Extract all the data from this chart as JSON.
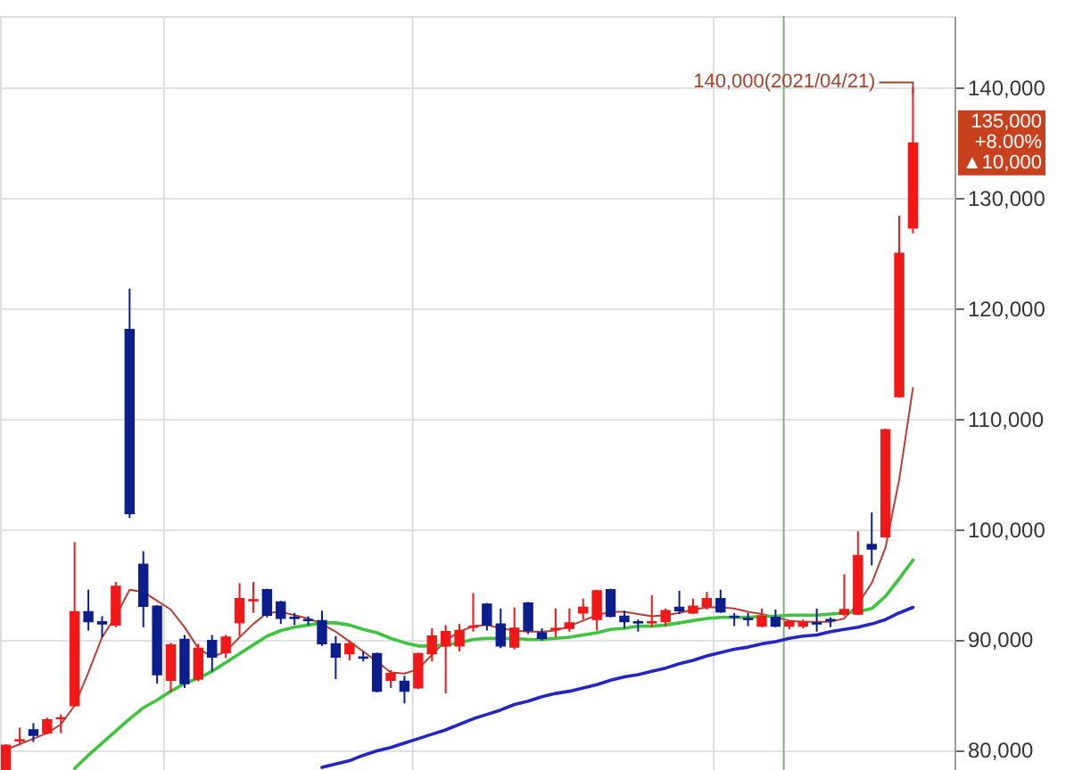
{
  "chart_data": {
    "type": "candlestick",
    "categories": [
      null,
      null,
      null,
      null,
      null,
      null,
      null,
      null,
      null,
      null,
      null,
      null,
      null,
      null,
      null,
      null,
      null,
      null,
      null,
      null,
      null,
      null,
      null,
      null,
      null,
      null,
      null,
      null,
      null,
      null,
      null,
      null,
      null,
      null,
      null,
      null,
      null,
      null,
      null,
      null,
      null,
      null,
      null,
      null,
      null,
      null,
      null,
      null,
      null,
      null,
      null,
      null,
      null,
      null,
      null,
      null,
      null,
      null,
      null,
      null,
      null,
      null,
      null,
      null,
      null,
      null,
      null
    ],
    "ohlc": [
      [
        78200,
        80500,
        78100,
        80400
      ],
      [
        80800,
        82000,
        80400,
        80900
      ],
      [
        81800,
        82400,
        80700,
        81300
      ],
      [
        81500,
        82900,
        81400,
        82700
      ],
      [
        82800,
        83200,
        81500,
        82900
      ],
      [
        84000,
        98800,
        83900,
        92500
      ],
      [
        92500,
        94500,
        90800,
        91600
      ],
      [
        91600,
        92100,
        90200,
        91400
      ],
      [
        91300,
        95200,
        91100,
        94800
      ],
      [
        118100,
        121800,
        101000,
        101400
      ],
      [
        96800,
        98000,
        91100,
        93000
      ],
      [
        93000,
        93100,
        86000,
        86800
      ],
      [
        86300,
        89700,
        85200,
        89500
      ],
      [
        90000,
        90400,
        85600,
        86000
      ],
      [
        86400,
        89600,
        86200,
        89200
      ],
      [
        89900,
        90400,
        87100,
        88400
      ],
      [
        88800,
        90400,
        88300,
        90200
      ],
      [
        91500,
        95100,
        90300,
        93700
      ],
      [
        93500,
        95200,
        92400,
        93600
      ],
      [
        94500,
        94600,
        92000,
        92200
      ],
      [
        93400,
        93500,
        91400,
        91900
      ],
      [
        92000,
        92400,
        91300,
        91900
      ],
      [
        91800,
        92100,
        91300,
        91700
      ],
      [
        91700,
        92600,
        89400,
        89600
      ],
      [
        89600,
        90300,
        86400,
        88400
      ],
      [
        88700,
        89900,
        88100,
        89600
      ],
      [
        88400,
        88900,
        88000,
        88300
      ],
      [
        88700,
        88800,
        85200,
        85300
      ],
      [
        86300,
        87200,
        85600,
        86900
      ],
      [
        86200,
        86700,
        84200,
        85300
      ],
      [
        85600,
        88800,
        85500,
        88700
      ],
      [
        88700,
        91000,
        88000,
        90300
      ],
      [
        89400,
        91300,
        85100,
        90700
      ],
      [
        89400,
        91400,
        88900,
        90800
      ],
      [
        91100,
        94200,
        90700,
        91200
      ],
      [
        93200,
        93300,
        90800,
        91300
      ],
      [
        91400,
        92800,
        89200,
        89400
      ],
      [
        89300,
        92900,
        89100,
        91000
      ],
      [
        93300,
        93400,
        90500,
        90800
      ],
      [
        90600,
        91000,
        89900,
        90100
      ],
      [
        90900,
        92800,
        90200,
        91000
      ],
      [
        91000,
        92800,
        90700,
        91500
      ],
      [
        92400,
        93700,
        91800,
        92900
      ],
      [
        91800,
        94500,
        90800,
        94400
      ],
      [
        94500,
        94600,
        92000,
        92100
      ],
      [
        92100,
        92600,
        91000,
        91600
      ],
      [
        91600,
        91800,
        90700,
        91500
      ],
      [
        91500,
        94000,
        91100,
        91600
      ],
      [
        91600,
        92800,
        91200,
        92600
      ],
      [
        92900,
        94400,
        92300,
        92600
      ],
      [
        92400,
        93700,
        92300,
        93000
      ],
      [
        93000,
        94300,
        92700,
        93700
      ],
      [
        93700,
        94500,
        92400,
        92500
      ],
      [
        92100,
        92400,
        91200,
        92000
      ],
      [
        91900,
        92400,
        91200,
        91800
      ],
      [
        91200,
        92800,
        91100,
        92100
      ],
      [
        92000,
        92700,
        91100,
        91200
      ],
      [
        91200,
        91700,
        90900,
        91600
      ],
      [
        91200,
        91800,
        91000,
        91600
      ],
      [
        91500,
        92800,
        90700,
        91400
      ],
      [
        91800,
        92000,
        91100,
        91700
      ],
      [
        92300,
        95900,
        92100,
        92700
      ],
      [
        92300,
        99800,
        92200,
        97600
      ],
      [
        98600,
        101500,
        96700,
        98200
      ],
      [
        99300,
        109100,
        99200,
        109000
      ],
      [
        112000,
        128400,
        111900,
        125000
      ],
      [
        127300,
        140000,
        126800,
        135000
      ]
    ],
    "colors": [
      "#f01818",
      "#f01818",
      "#0c1e8c",
      "#f01818",
      "#f01818",
      "#f01818",
      "#0c1e8c",
      "#0c1e8c",
      "#f01818",
      "#0c1e8c",
      "#0c1e8c",
      "#0c1e8c",
      "#f01818",
      "#0c1e8c",
      "#f01818",
      "#0c1e8c",
      "#f01818",
      "#f01818",
      "#f01818",
      "#0c1e8c",
      "#0c1e8c",
      "#0c1e8c",
      "#0c1e8c",
      "#0c1e8c",
      "#0c1e8c",
      "#f01818",
      "#0c1e8c",
      "#0c1e8c",
      "#f01818",
      "#0c1e8c",
      "#f01818",
      "#f01818",
      "#f01818",
      "#f01818",
      "#f01818",
      "#0c1e8c",
      "#0c1e8c",
      "#f01818",
      "#0c1e8c",
      "#0c1e8c",
      "#f01818",
      "#f01818",
      "#f01818",
      "#f01818",
      "#0c1e8c",
      "#0c1e8c",
      "#0c1e8c",
      "#f01818",
      "#f01818",
      "#0c1e8c",
      "#f01818",
      "#f01818",
      "#0c1e8c",
      "#0c1e8c",
      "#0c1e8c",
      "#f01818",
      "#0c1e8c",
      "#f01818",
      "#f01818",
      "#0c1e8c",
      "#0c1e8c",
      "#f01818",
      "#f01818",
      "#0c1e8c",
      "#f01818",
      "#f01818",
      "#f01818"
    ],
    "series": [
      {
        "type": "line",
        "color": "#b5403a",
        "line_style": "solid",
        "values": [
          80000,
          80500,
          81000,
          81500,
          82300,
          84000,
          87000,
          90200,
          92100,
          94500,
          94300,
          93500,
          92700,
          91100,
          89200,
          88400,
          88900,
          90200,
          91400,
          92400,
          92500,
          92200,
          91900,
          91400,
          90700,
          89800,
          88900,
          88000,
          87000,
          86900,
          87300,
          88600,
          89900,
          90700,
          91200,
          91300,
          91000,
          90800,
          90700,
          90700,
          90800,
          91200,
          91700,
          92200,
          92500,
          92500,
          92300,
          92100,
          92200,
          92400,
          92700,
          92900,
          92900,
          92800,
          92500,
          92300,
          92000,
          91700,
          91600,
          91600,
          91600,
          91900,
          93200,
          95100,
          98300,
          104500,
          112800
        ]
      },
      {
        "type": "line",
        "color": "#3ec43e",
        "line_style": "solid",
        "values": [
          null,
          null,
          null,
          null,
          null,
          78300,
          79500,
          80600,
          81700,
          82800,
          83800,
          84500,
          85300,
          86000,
          86500,
          87100,
          87900,
          88700,
          89500,
          90300,
          90800,
          91100,
          91300,
          91500,
          91500,
          91300,
          90900,
          90600,
          90100,
          89700,
          89400,
          89400,
          89500,
          89700,
          90000,
          90100,
          90100,
          90100,
          90000,
          90000,
          90100,
          90200,
          90400,
          90600,
          90900,
          91000,
          91200,
          91200,
          91300,
          91500,
          91700,
          91900,
          92000,
          92000,
          92000,
          92100,
          92100,
          92200,
          92200,
          92200,
          92300,
          92400,
          92500,
          92800,
          93900,
          95500,
          97200
        ]
      },
      {
        "type": "line",
        "color": "#2525c4",
        "line_style": "solid",
        "values": [
          null,
          null,
          null,
          null,
          null,
          null,
          null,
          null,
          null,
          null,
          null,
          null,
          null,
          null,
          null,
          null,
          null,
          null,
          null,
          null,
          null,
          null,
          null,
          78400,
          78700,
          79000,
          79500,
          79900,
          80200,
          80600,
          81000,
          81400,
          81800,
          82300,
          82800,
          83200,
          83600,
          84100,
          84400,
          84800,
          85100,
          85300,
          85600,
          85900,
          86300,
          86600,
          86800,
          87100,
          87400,
          87800,
          88100,
          88500,
          88800,
          89100,
          89300,
          89600,
          89800,
          90100,
          90300,
          90400,
          90700,
          90900,
          91100,
          91400,
          91800,
          92400,
          92900
        ]
      }
    ],
    "ylim": [
      78000,
      146500
    ],
    "yticks": [
      {
        "value": 80000,
        "label": "80,000"
      },
      {
        "value": 90000,
        "label": "90,000"
      },
      {
        "value": 100000,
        "label": "100,000"
      },
      {
        "value": 110000,
        "label": "110,000"
      },
      {
        "value": 120000,
        "label": "120,000"
      },
      {
        "value": 130000,
        "label": "130,000"
      },
      {
        "value": 140000,
        "label": "140,000"
      }
    ],
    "tick_labels": "y",
    "grid": true,
    "annotations": [
      "140,000(2021/04/21)",
      "135,000\n+8.00%\n▲10,000"
    ]
  }
}
